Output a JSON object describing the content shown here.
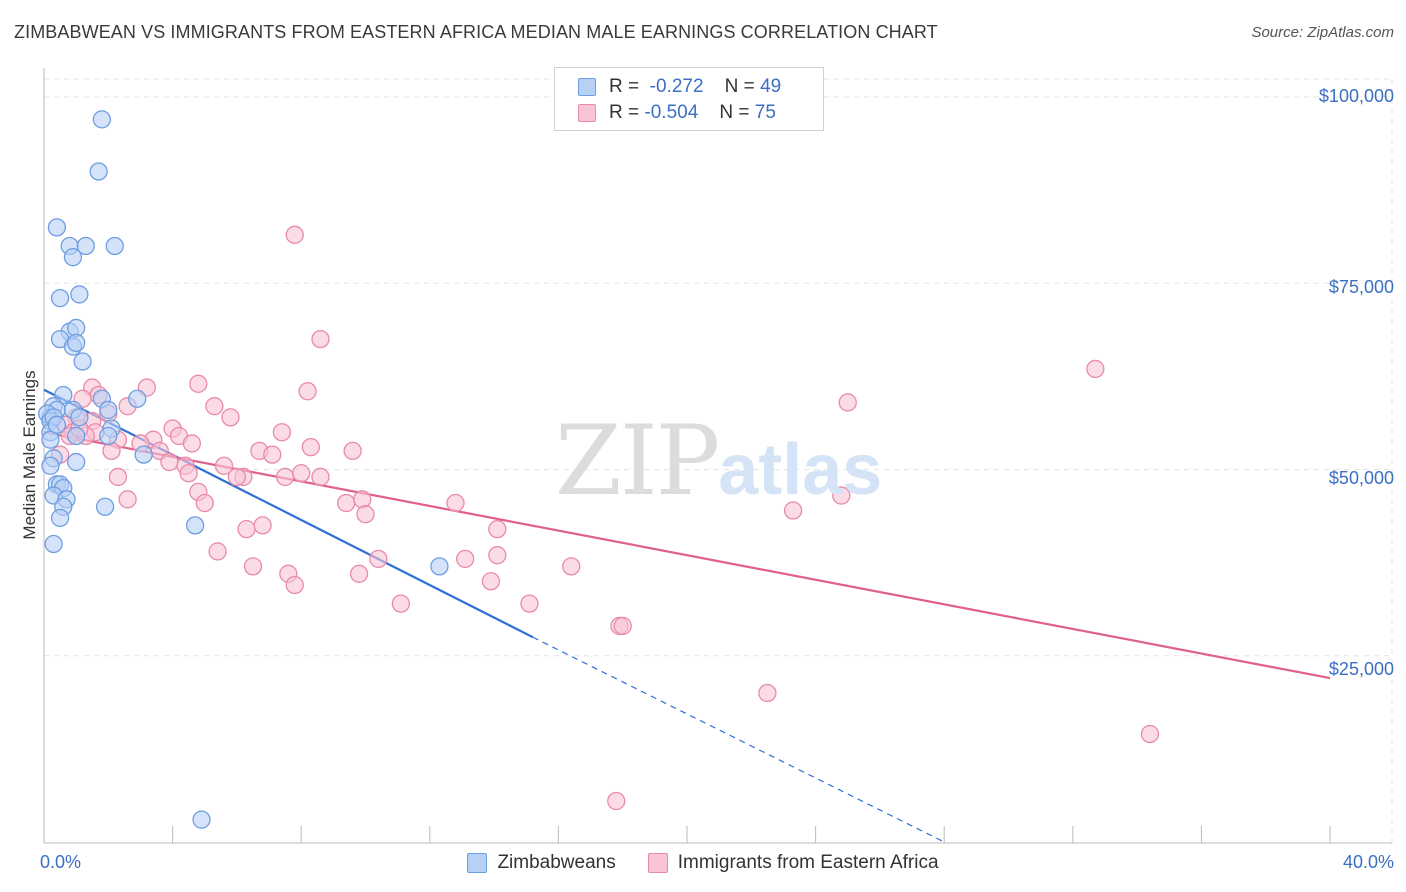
{
  "title": "ZIMBABWEAN VS IMMIGRANTS FROM EASTERN AFRICA MEDIAN MALE EARNINGS CORRELATION CHART",
  "source": "Source: ZipAtlas.com",
  "watermark": {
    "zip": "ZIP",
    "atlas": "atlas"
  },
  "stats": {
    "blue": {
      "r_label": "R =",
      "r_value": "-0.272",
      "n_label": "N =",
      "n_value": "49"
    },
    "pink": {
      "r_label": "R =",
      "r_value": "-0.504",
      "n_label": "N =",
      "n_value": "75"
    }
  },
  "legend": {
    "blue": "Zimbabweans",
    "pink": "Immigrants from Eastern Africa"
  },
  "colors": {
    "blue_fill": "#b7d1f5",
    "blue_stroke": "#6f9ee0",
    "blue_line": "#2f6fd6",
    "pink_fill": "#f9c5d6",
    "pink_stroke": "#e98aa9",
    "pink_line": "#e0608e",
    "axis_text": "#3b6fc4",
    "grid": "#e3e3e3"
  },
  "chart_data": {
    "type": "scatter",
    "title": "ZIMBABWEAN VS IMMIGRANTS FROM EASTERN AFRICA MEDIAN MALE EARNINGS CORRELATION CHART",
    "xlabel": "",
    "ylabel": "Median Male Earnings",
    "xlim": [
      0,
      40
    ],
    "ylim": [
      0,
      105000
    ],
    "x_tick_labels": [
      "0.0%",
      "40.0%"
    ],
    "y_ticks": [
      25000,
      50000,
      75000,
      100000
    ],
    "y_tick_labels": [
      "$25,000",
      "$50,000",
      "$75,000",
      "$100,000"
    ],
    "grid": true,
    "legend_position": "bottom-center",
    "series": [
      {
        "name": "Zimbabweans",
        "points": [
          [
            1.8,
            97000
          ],
          [
            1.7,
            90000
          ],
          [
            0.4,
            82500
          ],
          [
            0.8,
            80000
          ],
          [
            1.3,
            80000
          ],
          [
            2.2,
            80000
          ],
          [
            0.9,
            78500
          ],
          [
            1.1,
            73500
          ],
          [
            0.5,
            73000
          ],
          [
            0.8,
            68500
          ],
          [
            1.0,
            69000
          ],
          [
            0.5,
            67500
          ],
          [
            0.9,
            66500
          ],
          [
            1.0,
            67000
          ],
          [
            1.2,
            64500
          ],
          [
            0.6,
            60000
          ],
          [
            0.3,
            58500
          ],
          [
            0.2,
            57000
          ],
          [
            0.4,
            58000
          ],
          [
            0.9,
            58000
          ],
          [
            0.1,
            57500
          ],
          [
            0.2,
            56500
          ],
          [
            0.3,
            57000
          ],
          [
            1.8,
            59500
          ],
          [
            2.9,
            59500
          ],
          [
            2.0,
            58000
          ],
          [
            0.2,
            55000
          ],
          [
            1.0,
            54500
          ],
          [
            0.2,
            54000
          ],
          [
            2.1,
            55500
          ],
          [
            2.0,
            54500
          ],
          [
            0.3,
            51500
          ],
          [
            1.0,
            51000
          ],
          [
            0.2,
            50500
          ],
          [
            3.1,
            52000
          ],
          [
            0.4,
            48000
          ],
          [
            0.5,
            48000
          ],
          [
            0.6,
            47500
          ],
          [
            0.3,
            46500
          ],
          [
            0.7,
            46000
          ],
          [
            0.6,
            45000
          ],
          [
            1.9,
            45000
          ],
          [
            0.5,
            43500
          ],
          [
            4.7,
            42500
          ],
          [
            0.3,
            40000
          ],
          [
            12.3,
            37000
          ],
          [
            4.9,
            3000
          ],
          [
            0.4,
            56000
          ],
          [
            1.1,
            57000
          ]
        ]
      },
      {
        "name": "Immigrants from Eastern Africa",
        "points": [
          [
            7.8,
            81500
          ],
          [
            8.6,
            67500
          ],
          [
            32.7,
            63500
          ],
          [
            1.5,
            61000
          ],
          [
            3.2,
            61000
          ],
          [
            4.8,
            61500
          ],
          [
            8.2,
            60500
          ],
          [
            1.7,
            60000
          ],
          [
            1.2,
            59500
          ],
          [
            5.3,
            58500
          ],
          [
            25.0,
            59000
          ],
          [
            2.6,
            58500
          ],
          [
            1.0,
            57000
          ],
          [
            1.5,
            56500
          ],
          [
            5.8,
            57000
          ],
          [
            0.7,
            56000
          ],
          [
            4.0,
            55500
          ],
          [
            7.4,
            55000
          ],
          [
            0.9,
            55000
          ],
          [
            1.6,
            55000
          ],
          [
            0.8,
            54500
          ],
          [
            1.3,
            54500
          ],
          [
            2.3,
            54000
          ],
          [
            3.4,
            54000
          ],
          [
            4.2,
            54500
          ],
          [
            4.6,
            53500
          ],
          [
            2.1,
            52500
          ],
          [
            3.6,
            52500
          ],
          [
            6.7,
            52500
          ],
          [
            7.1,
            52000
          ],
          [
            8.3,
            53000
          ],
          [
            9.6,
            52500
          ],
          [
            3.9,
            51000
          ],
          [
            4.4,
            50500
          ],
          [
            5.6,
            50500
          ],
          [
            4.5,
            49500
          ],
          [
            6.2,
            49000
          ],
          [
            7.5,
            49000
          ],
          [
            8.0,
            49500
          ],
          [
            8.6,
            49000
          ],
          [
            2.3,
            49000
          ],
          [
            6.0,
            49000
          ],
          [
            4.8,
            47000
          ],
          [
            2.6,
            46000
          ],
          [
            5.0,
            45500
          ],
          [
            9.4,
            45500
          ],
          [
            9.9,
            46000
          ],
          [
            12.8,
            45500
          ],
          [
            10.0,
            44000
          ],
          [
            23.3,
            44500
          ],
          [
            24.8,
            46500
          ],
          [
            14.1,
            42000
          ],
          [
            6.3,
            42000
          ],
          [
            6.8,
            42500
          ],
          [
            5.4,
            39000
          ],
          [
            10.4,
            38000
          ],
          [
            13.1,
            38000
          ],
          [
            14.1,
            38500
          ],
          [
            6.5,
            37000
          ],
          [
            16.4,
            37000
          ],
          [
            7.6,
            36000
          ],
          [
            9.8,
            36000
          ],
          [
            13.9,
            35000
          ],
          [
            7.8,
            34500
          ],
          [
            11.1,
            32000
          ],
          [
            15.1,
            32000
          ],
          [
            17.9,
            29000
          ],
          [
            18.0,
            29000
          ],
          [
            22.5,
            20000
          ],
          [
            34.4,
            14500
          ],
          [
            17.8,
            5500
          ],
          [
            1.1,
            55500
          ],
          [
            0.5,
            52000
          ],
          [
            2.0,
            57500
          ],
          [
            3.0,
            53500
          ]
        ]
      }
    ],
    "trend_lines": [
      {
        "series": "Zimbabweans",
        "x_start": 0,
        "y_start": 60700,
        "x_end": 15.2,
        "y_end": 27500,
        "dashed_to_x": 28.0,
        "dashed_to_y": 0
      },
      {
        "series": "Immigrants from Eastern Africa",
        "x_start": 0,
        "y_start": 55000,
        "x_end": 40,
        "y_end": 22000
      }
    ]
  }
}
